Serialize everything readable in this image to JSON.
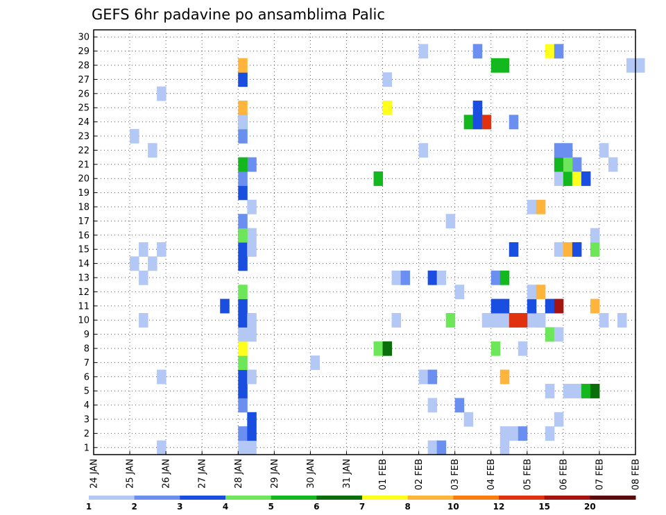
{
  "chart_data": {
    "type": "heatmap",
    "title": "GEFS 6hr padavine po ansamblima Palic",
    "xlabel": "",
    "ylabel": "",
    "x_ticks": [
      "24 JAN",
      "25 JAN",
      "26 JAN",
      "27 JAN",
      "28 JAN",
      "29 JAN",
      "30 JAN",
      "31 JAN",
      "01 FEB",
      "02 FEB",
      "03 FEB",
      "04 FEB",
      "05 FEB",
      "06 FEB",
      "07 FEB",
      "08 FEB"
    ],
    "y_ticks": [
      "1",
      "2",
      "3",
      "4",
      "5",
      "6",
      "7",
      "8",
      "9",
      "10",
      "11",
      "12",
      "13",
      "14",
      "15",
      "16",
      "17",
      "18",
      "19",
      "20",
      "21",
      "22",
      "23",
      "24",
      "25",
      "26",
      "27",
      "28",
      "29",
      "30"
    ],
    "xlim_days": [
      0,
      15
    ],
    "ylim": [
      0.5,
      30.5
    ],
    "grid": true,
    "colorbar": {
      "labels": [
        "1",
        "2",
        "3",
        "4",
        "5",
        "6",
        "7",
        "8",
        "10",
        "12",
        "15",
        "20"
      ],
      "colors": [
        "#b3c8f5",
        "#6a8ff0",
        "#1a4ee0",
        "#6ee65a",
        "#12b81e",
        "#0a6e0a",
        "#ffff1e",
        "#ffb43c",
        "#fa7d0f",
        "#e1320f",
        "#a5140f",
        "#5a0a0a"
      ]
    },
    "cells": [
      [
        1,
        3,
        1
      ],
      [
        3,
        4,
        1
      ],
      [
        3,
        5,
        1
      ],
      [
        9,
        1,
        1
      ],
      [
        9,
        2,
        2
      ],
      [
        11,
        1,
        1
      ],
      [
        3,
        4,
        2
      ],
      [
        3,
        5,
        3
      ],
      [
        11,
        1,
        1
      ],
      [
        11,
        2,
        1
      ],
      [
        11,
        3,
        2
      ],
      [
        12,
        2,
        1
      ],
      [
        3,
        5,
        3
      ],
      [
        10,
        1,
        1
      ],
      [
        12,
        3,
        1
      ],
      [
        3,
        4,
        2
      ],
      [
        9,
        1,
        1
      ],
      [
        9,
        4,
        2
      ],
      [
        3,
        4,
        3
      ],
      [
        12,
        2,
        1
      ],
      [
        13,
        0,
        1
      ],
      [
        13,
        1,
        1
      ],
      [
        13,
        2,
        5
      ],
      [
        13,
        3,
        6
      ],
      [
        1,
        3,
        1
      ],
      [
        3,
        4,
        3
      ],
      [
        3,
        5,
        1
      ],
      [
        8,
        4,
        1
      ],
      [
        8,
        5,
        2
      ],
      [
        11,
        1,
        8
      ],
      [
        3,
        4,
        4
      ],
      [
        6,
        0,
        1
      ],
      [
        3,
        4,
        7
      ],
      [
        7,
        3,
        4
      ],
      [
        7,
        4,
        6
      ],
      [
        11,
        0,
        4
      ],
      [
        11,
        3,
        1
      ],
      [
        3,
        4,
        1
      ],
      [
        3,
        5,
        1
      ],
      [
        12,
        2,
        4
      ],
      [
        12,
        3,
        1
      ],
      [
        3,
        4,
        3
      ],
      [
        3,
        5,
        1
      ],
      [
        8,
        1,
        1
      ],
      [
        9,
        3,
        4
      ],
      [
        10,
        3,
        1
      ],
      [
        10,
        4,
        1
      ],
      [
        10,
        5,
        1
      ],
      [
        10,
        6,
        1
      ],
      [
        10,
        8,
        1
      ],
      [
        10,
        9,
        1
      ],
      [
        11,
        0,
        1
      ],
      [
        11,
        1,
        1
      ],
      [
        11,
        2,
        10
      ],
      [
        11,
        3,
        10
      ],
      [
        12,
        1,
        1
      ],
      [
        13,
        4,
        1
      ],
      [
        13,
        6,
        1
      ],
      [
        1,
        1,
        1
      ],
      [
        3,
        4,
        3
      ],
      [
        11,
        0,
        3
      ],
      [
        11,
        1,
        3
      ],
      [
        11,
        4,
        3
      ],
      [
        12,
        2,
        3
      ],
      [
        12,
        3,
        11
      ],
      [
        13,
        3,
        8
      ],
      [
        3,
        2,
        3
      ],
      [
        10,
        0,
        1
      ],
      [
        11,
        4,
        1
      ],
      [
        11,
        5,
        8
      ],
      [
        3,
        4,
        4
      ],
      [
        8,
        1,
        1
      ],
      [
        8,
        2,
        2
      ],
      [
        9,
        1,
        3
      ],
      [
        9,
        2,
        1
      ],
      [
        11,
        0,
        2
      ],
      [
        11,
        1,
        5
      ],
      [
        1,
        1,
        1
      ],
      [
        1,
        2,
        1
      ],
      [
        3,
        4,
        3
      ],
      [
        1,
        0,
        1
      ],
      [
        1,
        1,
        1
      ],
      [
        3,
        4,
        3
      ],
      [
        3,
        5,
        1
      ],
      [
        11,
        2,
        3
      ],
      [
        12,
        3,
        1
      ],
      [
        13,
        0,
        8
      ],
      [
        13,
        1,
        3
      ],
      [
        13,
        3,
        4
      ],
      [
        1,
        3,
        1
      ],
      [
        3,
        4,
        3
      ],
      [
        3,
        5,
        1
      ],
      [
        13,
        3,
        1
      ],
      [
        3,
        4,
        4
      ],
      [
        9,
        3,
        1
      ],
      [
        3,
        4,
        2
      ],
      [
        11,
        4,
        1
      ],
      [
        11,
        5,
        8
      ],
      [
        3,
        5,
        1
      ],
      [
        3,
        4,
        3
      ],
      [
        7,
        3,
        5
      ],
      [
        12,
        3,
        1
      ],
      [
        12,
        4,
        1
      ],
      [
        13,
        0,
        5
      ],
      [
        13,
        1,
        7
      ],
      [
        13,
        2,
        3
      ],
      [
        3,
        4,
        2
      ],
      [
        3,
        5,
        2
      ],
      [
        12,
        3,
        5
      ],
      [
        12,
        4,
        12
      ],
      [
        12,
        5,
        2
      ],
      [
        13,
        0,
        4
      ],
      [
        14,
        1,
        1
      ],
      [
        3,
        4,
        5
      ],
      [
        9,
        0,
        1
      ],
      [
        12,
        3,
        2
      ],
      [
        12,
        4,
        2
      ],
      [
        14,
        0,
        1
      ],
      [
        1,
        2,
        1
      ],
      [
        3,
        4,
        2
      ],
      [
        1,
        0,
        1
      ],
      [
        3,
        4,
        5
      ],
      [
        10,
        1,
        5
      ],
      [
        10,
        2,
        3
      ],
      [
        10,
        3,
        10
      ],
      [
        11,
        2,
        2
      ],
      [
        3,
        4,
        1
      ],
      [
        7,
        4,
        7
      ],
      [
        10,
        2,
        3
      ],
      [
        3,
        4,
        8
      ],
      [
        1,
        3,
        1
      ],
      [
        3,
        4,
        4
      ],
      [
        7,
        4,
        1
      ],
      [
        3,
        4,
        3
      ],
      [
        11,
        0,
        5
      ],
      [
        11,
        1,
        5
      ],
      [
        14,
        3,
        1
      ],
      [
        14,
        4,
        1
      ],
      [
        3,
        4,
        8
      ],
      [
        9,
        0,
        1
      ],
      [
        10,
        2,
        2
      ],
      [
        12,
        2,
        7
      ],
      [
        12,
        3,
        2
      ]
    ]
  }
}
